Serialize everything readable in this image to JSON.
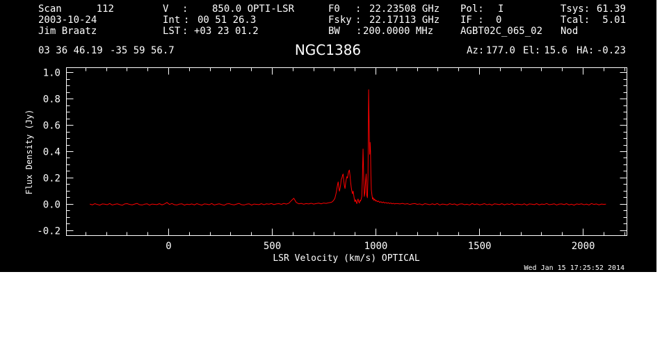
{
  "header": {
    "scan_label": "Scan",
    "scan_number": "112",
    "date": "2003-10-24",
    "observer": "Jim Braatz",
    "v_label": "V",
    "v_sep": ":",
    "v_value": "850.0 OPTI-LSR",
    "int_label": "Int",
    "int_sep": ":",
    "int_value": "00 51 26.3",
    "lst_label": "LST",
    "lst_sep": ":",
    "lst_value": "+03 23 01.2",
    "f0_label": "F0",
    "f0_sep": ":",
    "f0_value": "22.23508 GHz",
    "fsky_label": "Fsky",
    "fsky_sep": ":",
    "fsky_value": "22.17113 GHz",
    "bw_label": "BW",
    "bw_sep": ":",
    "bw_value": "200.0000 MHz",
    "pol_label": "Pol:",
    "pol_value": "I",
    "if_label": "IF :",
    "if_value": "0",
    "project": "AGBT02C_065_02",
    "tsys_label": "Tsys:",
    "tsys_value": "61.39",
    "tcal_label": "Tcal:",
    "tcal_value": "5.01",
    "procedure": "Nod",
    "ra": "03 36 46.19",
    "dec": "-35 59 56.7",
    "az_label": "Az:",
    "az_value": "177.0",
    "el_label": "El:",
    "el_value": "15.6",
    "ha_label": "HA:",
    "ha_value": "-0.23"
  },
  "footer": {
    "timestamp": "Wed Jan 15 17:25:52 2014"
  },
  "colors": {
    "page": "#ffffff",
    "background": "#000000",
    "foreground": "#ffffff",
    "spectrum": "#ff0000"
  },
  "chart_data": {
    "type": "line",
    "title": "NGC1386",
    "xlabel": "LSR Velocity (km/s) OPTICAL",
    "ylabel": "Flux Density (Jy)",
    "xlim": [
      -493,
      2211
    ],
    "ylim": [
      -0.237,
      1.037
    ],
    "xticks": [
      0,
      500,
      1000,
      1500,
      2000
    ],
    "xtick_labels": [
      "0",
      "500",
      "1000",
      "1500",
      "2000"
    ],
    "yticks": [
      -0.2,
      0.0,
      0.2,
      0.4,
      0.6,
      0.8,
      1.0
    ],
    "ytick_labels": [
      "-0.2",
      "0.0",
      "0.2",
      "0.4",
      "0.6",
      "0.8",
      "1.0"
    ],
    "grid": false,
    "series": [
      {
        "x": [
          -380,
          -368,
          -356,
          -344,
          -332,
          -320,
          -308,
          -296,
          -284,
          -272,
          -260,
          -248,
          -236,
          -224,
          -212,
          -200,
          -188,
          -176,
          -164,
          -152,
          -140,
          -128,
          -116,
          -104,
          -92,
          -80,
          -68,
          -56,
          -44,
          -32,
          -20,
          -8,
          4,
          16,
          28,
          40,
          52,
          64,
          76,
          88,
          100,
          112,
          124,
          136,
          148,
          160,
          172,
          184,
          196,
          208,
          220,
          232,
          244,
          256,
          268,
          280,
          292,
          304,
          316,
          328,
          340,
          352,
          364,
          376,
          388,
          400,
          412,
          424,
          436,
          448,
          460,
          472,
          484,
          496,
          508,
          520,
          532,
          544,
          556,
          568,
          580,
          592,
          604,
          616,
          628,
          640,
          652,
          664,
          676,
          688,
          700,
          712,
          724,
          736,
          748,
          760,
          772,
          784,
          790,
          796,
          802,
          806,
          810,
          814,
          818,
          821,
          824,
          827,
          830,
          833,
          836,
          839,
          842,
          845,
          848,
          851,
          854,
          857,
          860,
          863,
          866,
          869,
          872,
          875,
          878,
          881,
          884,
          887,
          890,
          893,
          896,
          899,
          902,
          905,
          908,
          911,
          914,
          917,
          920,
          923,
          926,
          929,
          932,
          935,
          938,
          941,
          944,
          947,
          950,
          953,
          956,
          959,
          962,
          965,
          968,
          970,
          972,
          974,
          976,
          978,
          981,
          984,
          987,
          990,
          994,
          998,
          1002,
          1007,
          1012,
          1018,
          1024,
          1030,
          1036,
          1042,
          1048,
          1054,
          1060,
          1066,
          1072,
          1078,
          1084,
          1090,
          1096,
          1104,
          1116,
          1128,
          1140,
          1152,
          1164,
          1176,
          1188,
          1200,
          1212,
          1224,
          1236,
          1248,
          1260,
          1272,
          1284,
          1296,
          1308,
          1320,
          1332,
          1344,
          1356,
          1368,
          1380,
          1392,
          1404,
          1416,
          1428,
          1440,
          1452,
          1464,
          1476,
          1488,
          1500,
          1512,
          1524,
          1536,
          1548,
          1560,
          1572,
          1584,
          1596,
          1608,
          1620,
          1632,
          1644,
          1656,
          1668,
          1680,
          1692,
          1704,
          1716,
          1728,
          1740,
          1752,
          1764,
          1776,
          1788,
          1800,
          1812,
          1824,
          1836,
          1848,
          1860,
          1872,
          1884,
          1896,
          1908,
          1920,
          1932,
          1944,
          1956,
          1968,
          1980,
          1992,
          2004,
          2016,
          2028,
          2040,
          2052,
          2064,
          2076,
          2088,
          2100,
          2110
        ],
        "y": [
          0.002,
          -0.004,
          0.005,
          -0.001,
          -0.006,
          0.003,
          0.001,
          -0.003,
          0.006,
          -0.005,
          0.0,
          0.004,
          -0.002,
          -0.007,
          0.003,
          0.005,
          -0.001,
          -0.004,
          0.002,
          0.007,
          -0.003,
          -0.005,
          0.001,
          0.004,
          -0.006,
          0.002,
          0.0,
          -0.002,
          0.005,
          -0.004,
          0.003,
          0.014,
          -0.001,
          0.006,
          -0.003,
          -0.005,
          0.002,
          0.004,
          -0.006,
          0.001,
          -0.002,
          0.003,
          -0.004,
          0.005,
          -0.001,
          -0.006,
          0.003,
          0.001,
          -0.003,
          0.006,
          -0.005,
          0.0,
          0.004,
          -0.002,
          -0.007,
          0.003,
          0.005,
          -0.001,
          -0.004,
          0.002,
          0.007,
          -0.003,
          -0.005,
          0.001,
          0.004,
          -0.006,
          0.002,
          0.0,
          -0.002,
          0.005,
          -0.003,
          0.004,
          0.001,
          0.006,
          -0.002,
          0.003,
          0.005,
          0.0,
          0.007,
          0.002,
          0.008,
          0.028,
          0.046,
          0.014,
          0.004,
          0.007,
          0.001,
          0.006,
          0.003,
          0.008,
          0.002,
          0.006,
          0.009,
          0.004,
          0.01,
          0.007,
          0.012,
          0.015,
          0.02,
          0.03,
          0.045,
          0.07,
          0.1,
          0.14,
          0.17,
          0.13,
          0.1,
          0.12,
          0.15,
          0.19,
          0.2,
          0.22,
          0.23,
          0.18,
          0.14,
          0.12,
          0.16,
          0.19,
          0.21,
          0.2,
          0.23,
          0.25,
          0.26,
          0.22,
          0.17,
          0.13,
          0.1,
          0.08,
          0.1,
          0.07,
          0.04,
          0.02,
          0.035,
          0.02,
          0.005,
          0.03,
          0.04,
          0.02,
          0.01,
          0.03,
          0.025,
          0.04,
          0.06,
          0.2,
          0.42,
          0.22,
          0.06,
          0.09,
          0.17,
          0.23,
          0.07,
          0.05,
          0.22,
          0.87,
          0.55,
          0.38,
          0.47,
          0.4,
          0.22,
          0.11,
          0.07,
          0.04,
          0.05,
          0.03,
          0.04,
          0.025,
          0.03,
          0.02,
          0.025,
          0.015,
          0.02,
          0.012,
          0.018,
          0.01,
          0.014,
          0.008,
          0.012,
          0.006,
          0.01,
          0.004,
          0.008,
          0.003,
          0.006,
          0.006,
          0.003,
          0.007,
          0.002,
          0.005,
          -0.001,
          0.004,
          0.006,
          0.0,
          0.003,
          -0.004,
          0.005,
          0.001,
          -0.003,
          0.004,
          -0.002,
          0.006,
          -0.005,
          0.002,
          0.0,
          -0.004,
          0.005,
          -0.001,
          0.003,
          -0.006,
          0.002,
          0.004,
          -0.003,
          0.001,
          -0.005,
          0.006,
          -0.002,
          0.003,
          -0.004,
          0.0,
          0.005,
          -0.003,
          0.002,
          -0.006,
          0.004,
          0.001,
          -0.002,
          0.005,
          -0.004,
          0.003,
          -0.001,
          0.006,
          -0.005,
          0.002,
          0.0,
          -0.003,
          0.004,
          -0.006,
          0.003,
          0.001,
          -0.002,
          0.005,
          -0.004,
          0.002,
          -0.001,
          0.006,
          -0.003,
          0.0,
          0.004,
          -0.005,
          0.002,
          0.003,
          -0.002,
          0.005,
          -0.004,
          0.001,
          -0.006,
          0.003,
          0.0,
          0.004,
          -0.003,
          0.002,
          -0.005,
          0.006,
          -0.001,
          0.003,
          -0.004,
          0.002,
          0.0,
          0.001
        ]
      }
    ]
  }
}
